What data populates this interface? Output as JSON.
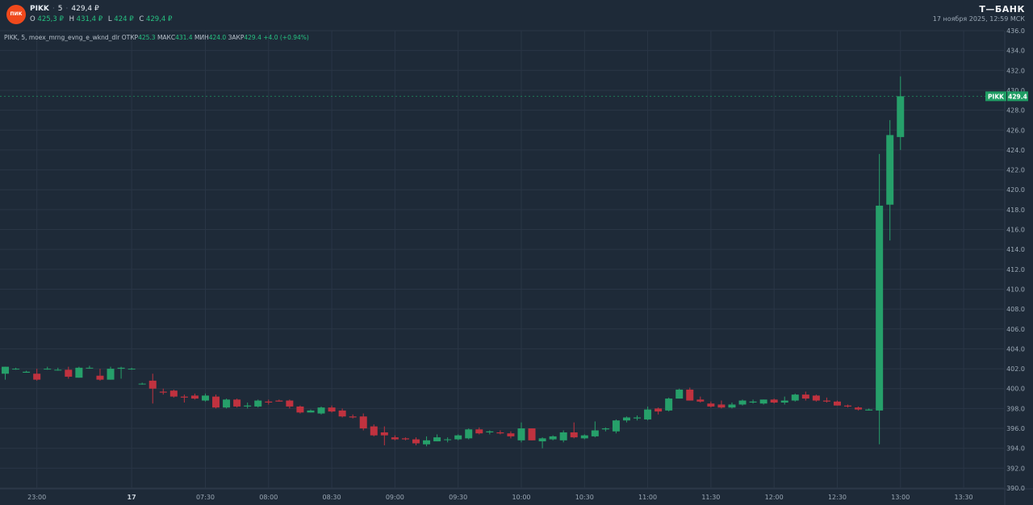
{
  "header": {
    "logo_text": "ПИК",
    "symbol": "PIKK",
    "interval": "5",
    "last_price": "429,4 ₽",
    "ohlc": [
      {
        "key": "O",
        "value": "425,3 ₽"
      },
      {
        "key": "H",
        "value": "431,4 ₽"
      },
      {
        "key": "L",
        "value": "424 ₽"
      },
      {
        "key": "C",
        "value": "429,4 ₽"
      }
    ],
    "brand": "Т—БАНК",
    "timestamp": "17 ноября 2025, 12:59 МСК"
  },
  "legend": {
    "name": "PIKK, 5, moex_mrng_evng_e_wknd_dlr",
    "open_label": "ОТКР",
    "open_value": "425.3",
    "high_label": "МАКС",
    "high_value": "431.4",
    "low_label": "МИН",
    "low_value": "424.0",
    "close_label": "ЗАКР",
    "close_value": "429.4",
    "change": "+4.0 (+0.94%)"
  },
  "colors": {
    "background": "#1e2a38",
    "grid": "#2a3646",
    "up": "#26a06a",
    "down": "#c0323f",
    "axis_text": "#9aa7b4",
    "price_label": "#1f9d64"
  },
  "chart_data": {
    "type": "candlestick",
    "ylim": [
      390,
      436
    ],
    "y_ticks": [
      "390.0",
      "392.0",
      "394.0",
      "396.0",
      "398.0",
      "400.0",
      "402.0",
      "404.0",
      "406.0",
      "408.0",
      "410.0",
      "412.0",
      "414.0",
      "416.0",
      "418.0",
      "420.0",
      "422.0",
      "424.0",
      "426.0",
      "428.0",
      "430.0",
      "432.0",
      "434.0",
      "436.0"
    ],
    "x_ticks": [
      {
        "label": "23:00",
        "bar": 3.5
      },
      {
        "label": "17",
        "bar": 12.5
      },
      {
        "label": "07:30",
        "bar": 19.5
      },
      {
        "label": "08:00",
        "bar": 25.5
      },
      {
        "label": "08:30",
        "bar": 31.5
      },
      {
        "label": "09:00",
        "bar": 37.5
      },
      {
        "label": "09:30",
        "bar": 43.5
      },
      {
        "label": "10:00",
        "bar": 49.5
      },
      {
        "label": "10:30",
        "bar": 55.5
      },
      {
        "label": "11:00",
        "bar": 61.5
      },
      {
        "label": "11:30",
        "bar": 67.5
      },
      {
        "label": "12:00",
        "bar": 73.5
      },
      {
        "label": "12:30",
        "bar": 79.5
      },
      {
        "label": "13:00",
        "bar": 85.5
      },
      {
        "label": "13:30",
        "bar": 91.5
      }
    ],
    "last_price_label": {
      "symbol": "PIKK",
      "value": "429.4",
      "price": 429.4
    },
    "candles": [
      {
        "o": 401.5,
        "h": 402.2,
        "l": 400.9,
        "c": 402.2
      },
      {
        "o": 402.0,
        "h": 402.1,
        "l": 401.9,
        "c": 402.0
      },
      {
        "o": 401.6,
        "h": 401.8,
        "l": 401.6,
        "c": 401.7
      },
      {
        "o": 401.5,
        "h": 402.0,
        "l": 400.8,
        "c": 400.9
      },
      {
        "o": 402.0,
        "h": 402.2,
        "l": 401.9,
        "c": 402.0
      },
      {
        "o": 401.9,
        "h": 402.1,
        "l": 401.8,
        "c": 401.9
      },
      {
        "o": 401.9,
        "h": 402.2,
        "l": 401.0,
        "c": 401.2
      },
      {
        "o": 401.1,
        "h": 402.2,
        "l": 401.1,
        "c": 402.1
      },
      {
        "o": 402.1,
        "h": 402.3,
        "l": 402.0,
        "c": 402.1
      },
      {
        "o": 401.3,
        "h": 402.0,
        "l": 400.8,
        "c": 400.9
      },
      {
        "o": 400.9,
        "h": 402.2,
        "l": 400.9,
        "c": 402.0
      },
      {
        "o": 402.0,
        "h": 402.2,
        "l": 401.0,
        "c": 402.1
      },
      {
        "o": 402.0,
        "h": 402.1,
        "l": 401.9,
        "c": 402.0
      },
      {
        "o": 400.5,
        "h": 400.6,
        "l": 400.4,
        "c": 400.5
      },
      {
        "o": 400.8,
        "h": 401.5,
        "l": 398.5,
        "c": 400.0
      },
      {
        "o": 399.7,
        "h": 400.0,
        "l": 399.4,
        "c": 399.6
      },
      {
        "o": 399.8,
        "h": 399.9,
        "l": 399.1,
        "c": 399.2
      },
      {
        "o": 399.2,
        "h": 399.4,
        "l": 398.6,
        "c": 399.1
      },
      {
        "o": 399.3,
        "h": 399.5,
        "l": 398.9,
        "c": 399.0
      },
      {
        "o": 398.8,
        "h": 399.5,
        "l": 398.7,
        "c": 399.3
      },
      {
        "o": 399.2,
        "h": 399.4,
        "l": 398.0,
        "c": 398.1
      },
      {
        "o": 398.1,
        "h": 399.0,
        "l": 398.0,
        "c": 398.9
      },
      {
        "o": 398.9,
        "h": 399.0,
        "l": 398.1,
        "c": 398.2
      },
      {
        "o": 398.2,
        "h": 398.6,
        "l": 398.0,
        "c": 398.3
      },
      {
        "o": 398.2,
        "h": 398.9,
        "l": 398.1,
        "c": 398.8
      },
      {
        "o": 398.7,
        "h": 398.9,
        "l": 398.4,
        "c": 398.6
      },
      {
        "o": 398.8,
        "h": 398.9,
        "l": 398.7,
        "c": 398.7
      },
      {
        "o": 398.8,
        "h": 398.9,
        "l": 398.0,
        "c": 398.2
      },
      {
        "o": 398.2,
        "h": 398.3,
        "l": 397.5,
        "c": 397.6
      },
      {
        "o": 397.6,
        "h": 397.9,
        "l": 397.6,
        "c": 397.8
      },
      {
        "o": 397.5,
        "h": 398.2,
        "l": 397.4,
        "c": 398.1
      },
      {
        "o": 398.1,
        "h": 398.3,
        "l": 397.6,
        "c": 397.7
      },
      {
        "o": 397.8,
        "h": 398.0,
        "l": 397.1,
        "c": 397.2
      },
      {
        "o": 397.2,
        "h": 397.4,
        "l": 397.0,
        "c": 397.1
      },
      {
        "o": 397.2,
        "h": 397.5,
        "l": 395.8,
        "c": 396.0
      },
      {
        "o": 396.2,
        "h": 396.4,
        "l": 395.2,
        "c": 395.3
      },
      {
        "o": 395.6,
        "h": 396.2,
        "l": 394.3,
        "c": 395.3
      },
      {
        "o": 395.1,
        "h": 395.3,
        "l": 394.8,
        "c": 394.9
      },
      {
        "o": 395.0,
        "h": 395.1,
        "l": 394.8,
        "c": 394.9
      },
      {
        "o": 394.9,
        "h": 395.1,
        "l": 394.3,
        "c": 394.5
      },
      {
        "o": 394.4,
        "h": 395.2,
        "l": 394.2,
        "c": 394.8
      },
      {
        "o": 394.7,
        "h": 395.4,
        "l": 394.7,
        "c": 395.1
      },
      {
        "o": 394.9,
        "h": 395.1,
        "l": 394.6,
        "c": 394.9
      },
      {
        "o": 394.9,
        "h": 395.4,
        "l": 394.8,
        "c": 395.3
      },
      {
        "o": 395.0,
        "h": 396.0,
        "l": 394.9,
        "c": 395.9
      },
      {
        "o": 395.9,
        "h": 396.1,
        "l": 395.4,
        "c": 395.5
      },
      {
        "o": 395.6,
        "h": 395.8,
        "l": 395.4,
        "c": 395.7
      },
      {
        "o": 395.6,
        "h": 395.8,
        "l": 395.4,
        "c": 395.5
      },
      {
        "o": 395.5,
        "h": 395.7,
        "l": 395.0,
        "c": 395.2
      },
      {
        "o": 394.8,
        "h": 396.6,
        "l": 394.6,
        "c": 396.0
      },
      {
        "o": 396.0,
        "h": 396.0,
        "l": 394.8,
        "c": 394.8
      },
      {
        "o": 394.7,
        "h": 395.1,
        "l": 394.0,
        "c": 395.0
      },
      {
        "o": 394.9,
        "h": 395.3,
        "l": 394.8,
        "c": 395.2
      },
      {
        "o": 394.8,
        "h": 395.8,
        "l": 394.6,
        "c": 395.6
      },
      {
        "o": 395.6,
        "h": 396.6,
        "l": 395.0,
        "c": 395.1
      },
      {
        "o": 395.0,
        "h": 395.4,
        "l": 394.9,
        "c": 395.3
      },
      {
        "o": 395.2,
        "h": 396.7,
        "l": 395.1,
        "c": 395.8
      },
      {
        "o": 395.9,
        "h": 396.1,
        "l": 395.7,
        "c": 396.0
      },
      {
        "o": 395.7,
        "h": 396.9,
        "l": 395.5,
        "c": 396.8
      },
      {
        "o": 396.8,
        "h": 397.2,
        "l": 396.6,
        "c": 397.1
      },
      {
        "o": 397.0,
        "h": 397.3,
        "l": 396.8,
        "c": 397.1
      },
      {
        "o": 396.9,
        "h": 398.2,
        "l": 396.8,
        "c": 397.9
      },
      {
        "o": 398.0,
        "h": 398.1,
        "l": 397.4,
        "c": 397.7
      },
      {
        "o": 397.8,
        "h": 399.1,
        "l": 397.7,
        "c": 399.0
      },
      {
        "o": 399.0,
        "h": 400.0,
        "l": 399.0,
        "c": 399.9
      },
      {
        "o": 399.9,
        "h": 400.1,
        "l": 398.8,
        "c": 398.8
      },
      {
        "o": 398.9,
        "h": 399.2,
        "l": 398.6,
        "c": 398.7
      },
      {
        "o": 398.5,
        "h": 398.7,
        "l": 398.1,
        "c": 398.2
      },
      {
        "o": 398.4,
        "h": 398.8,
        "l": 398.0,
        "c": 398.1
      },
      {
        "o": 398.1,
        "h": 398.6,
        "l": 398.0,
        "c": 398.4
      },
      {
        "o": 398.4,
        "h": 398.9,
        "l": 398.3,
        "c": 398.8
      },
      {
        "o": 398.6,
        "h": 398.9,
        "l": 398.5,
        "c": 398.7
      },
      {
        "o": 398.5,
        "h": 398.9,
        "l": 398.4,
        "c": 398.9
      },
      {
        "o": 398.9,
        "h": 399.0,
        "l": 398.5,
        "c": 398.6
      },
      {
        "o": 398.6,
        "h": 399.2,
        "l": 398.4,
        "c": 398.8
      },
      {
        "o": 398.8,
        "h": 399.5,
        "l": 398.7,
        "c": 399.4
      },
      {
        "o": 399.4,
        "h": 399.7,
        "l": 398.8,
        "c": 399.0
      },
      {
        "o": 399.3,
        "h": 399.4,
        "l": 398.7,
        "c": 398.8
      },
      {
        "o": 398.8,
        "h": 399.1,
        "l": 398.6,
        "c": 398.7
      },
      {
        "o": 398.7,
        "h": 398.8,
        "l": 398.3,
        "c": 398.3
      },
      {
        "o": 398.3,
        "h": 398.4,
        "l": 398.1,
        "c": 398.2
      },
      {
        "o": 398.1,
        "h": 398.2,
        "l": 397.8,
        "c": 397.9
      },
      {
        "o": 397.8,
        "h": 398.0,
        "l": 397.8,
        "c": 397.9
      },
      {
        "o": 397.8,
        "h": 423.6,
        "l": 394.4,
        "c": 418.4
      },
      {
        "o": 418.5,
        "h": 427.0,
        "l": 414.9,
        "c": 425.5
      },
      {
        "o": 425.3,
        "h": 431.4,
        "l": 424.0,
        "c": 429.4
      }
    ]
  }
}
